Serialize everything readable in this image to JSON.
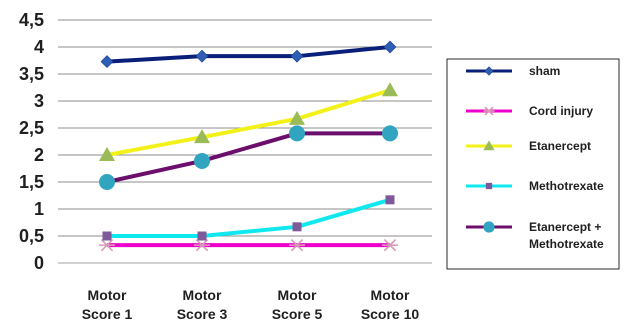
{
  "chart_data": {
    "type": "line",
    "title": "",
    "xlabel": "",
    "ylabel": "",
    "categories": [
      [
        "Motor",
        "Score 1"
      ],
      [
        "Motor",
        "Score 3"
      ],
      [
        "Motor",
        "Score 5"
      ],
      [
        "Motor",
        "Score 10"
      ]
    ],
    "ylim": [
      0,
      4.5
    ],
    "yticks": [
      "0",
      "0,5",
      "1",
      "1,5",
      "2",
      "2,5",
      "3",
      "3,5",
      "4",
      "4,5"
    ],
    "grid": true,
    "legend_position": "right",
    "series": [
      {
        "name": "sham",
        "values": [
          3.73,
          3.83,
          3.83,
          4.0
        ],
        "color": "#0a1f7a",
        "marker": "diamond",
        "marker_color": "#2e5eb8"
      },
      {
        "name": "Cord injury",
        "values": [
          0.33,
          0.33,
          0.33,
          0.33
        ],
        "color": "#ee00cc",
        "marker": "asterisk",
        "marker_color": "#d99ab8"
      },
      {
        "name": "Etanercept",
        "values": [
          2.0,
          2.33,
          2.67,
          3.2
        ],
        "color": "#f2f21a",
        "marker": "triangle",
        "marker_color": "#9bbb59"
      },
      {
        "name": "Methotrexate",
        "values": [
          0.5,
          0.5,
          0.67,
          1.17
        ],
        "color": "#10e8f0",
        "marker": "square",
        "marker_color": "#7f5a9a"
      },
      {
        "name": [
          "Etanercept +",
          "Methotrexate"
        ],
        "values": [
          1.5,
          1.89,
          2.4,
          2.4
        ],
        "color": "#6c0f6c",
        "marker": "circle",
        "marker_color": "#31a5c0"
      }
    ]
  }
}
